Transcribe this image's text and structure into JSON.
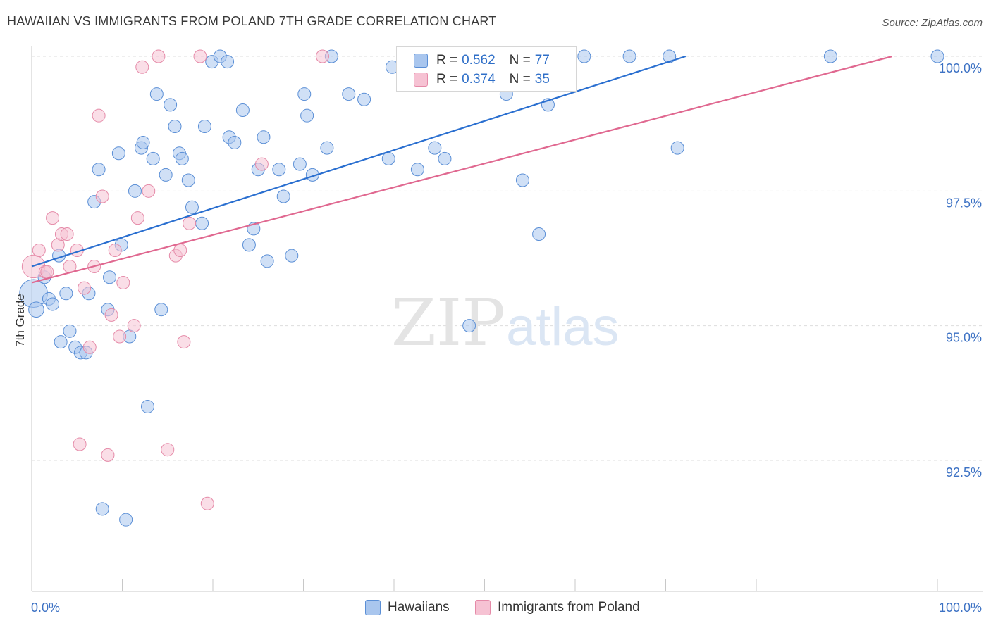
{
  "title": "HAWAIIAN VS IMMIGRANTS FROM POLAND 7TH GRADE CORRELATION CHART",
  "source": "Source: ZipAtlas.com",
  "watermark": {
    "zip": "ZIP",
    "atlas": "atlas"
  },
  "colors": {
    "blue_fill": "#a9c6ee",
    "blue_stroke": "#5b8fd6",
    "blue_line": "#2a6fd0",
    "pink_fill": "#f6c2d3",
    "pink_stroke": "#e58aa8",
    "pink_line": "#e06890",
    "axis_text": "#3d72c4",
    "grid": "#dddddd"
  },
  "legend_top": {
    "rows": [
      {
        "r_label": "R =",
        "r_value": "0.562",
        "n_label": "N =",
        "n_value": "77"
      },
      {
        "r_label": "R =",
        "r_value": "0.374",
        "n_label": "N =",
        "n_value": "35"
      }
    ]
  },
  "legend_bottom": [
    "Hawaiians",
    "Immigrants from Poland"
  ],
  "chart_data": {
    "type": "scatter",
    "title": "HAWAIIAN VS IMMIGRANTS FROM POLAND 7TH GRADE CORRELATION CHART",
    "ylabel": "7th Grade",
    "xlabel": "",
    "xlim": [
      0,
      100
    ],
    "ylim": [
      90.0,
      100.4
    ],
    "x_tick_labels": [
      "0.0%",
      "100.0%"
    ],
    "y_ticks": [
      92.5,
      95.0,
      97.5,
      100.0
    ],
    "y_tick_labels": [
      "92.5%",
      "95.0%",
      "97.5%",
      "100.0%"
    ],
    "grid": true,
    "legend_position": "top-center",
    "series": [
      {
        "name": "Hawaiians",
        "r": 0.562,
        "n": 77,
        "trend": {
          "x": [
            0.0,
            72.2
          ],
          "y": [
            96.1,
            100.0
          ]
        },
        "points": [
          [
            0.2,
            95.6,
            2.2
          ],
          [
            0.5,
            95.3,
            1.2
          ],
          [
            1.4,
            95.9,
            1
          ],
          [
            1.9,
            95.5,
            1
          ],
          [
            2.3,
            95.4,
            1
          ],
          [
            3.0,
            96.3,
            1
          ],
          [
            3.2,
            94.7,
            1
          ],
          [
            3.8,
            95.6,
            1
          ],
          [
            4.2,
            94.9,
            1
          ],
          [
            4.8,
            94.6,
            1
          ],
          [
            5.4,
            94.5,
            1
          ],
          [
            6.0,
            94.5,
            1
          ],
          [
            6.3,
            95.6,
            1
          ],
          [
            6.9,
            97.3,
            1
          ],
          [
            7.4,
            97.9,
            1
          ],
          [
            7.8,
            91.6,
            1
          ],
          [
            8.4,
            95.3,
            1
          ],
          [
            8.6,
            95.9,
            1
          ],
          [
            9.6,
            98.2,
            1
          ],
          [
            9.9,
            96.5,
            1
          ],
          [
            10.4,
            91.4,
            1
          ],
          [
            10.8,
            94.8,
            1
          ],
          [
            11.4,
            97.5,
            1
          ],
          [
            12.1,
            98.3,
            1
          ],
          [
            12.3,
            98.4,
            1
          ],
          [
            12.8,
            93.5,
            1
          ],
          [
            13.4,
            98.1,
            1
          ],
          [
            13.8,
            99.3,
            1
          ],
          [
            14.3,
            95.3,
            1
          ],
          [
            14.8,
            97.8,
            1
          ],
          [
            15.3,
            99.1,
            1
          ],
          [
            15.8,
            98.7,
            1
          ],
          [
            16.3,
            98.2,
            1
          ],
          [
            16.6,
            98.1,
            1
          ],
          [
            17.3,
            97.7,
            1
          ],
          [
            17.7,
            97.2,
            1
          ],
          [
            18.8,
            96.9,
            1
          ],
          [
            19.1,
            98.7,
            1
          ],
          [
            19.9,
            99.9,
            1
          ],
          [
            20.8,
            100.0,
            1
          ],
          [
            21.6,
            99.9,
            1
          ],
          [
            21.8,
            98.5,
            1
          ],
          [
            22.4,
            98.4,
            1
          ],
          [
            23.3,
            99.0,
            1
          ],
          [
            24.0,
            96.5,
            1
          ],
          [
            24.5,
            96.8,
            1
          ],
          [
            25.0,
            97.9,
            1
          ],
          [
            25.6,
            98.5,
            1
          ],
          [
            26.0,
            96.2,
            1
          ],
          [
            27.3,
            97.9,
            1
          ],
          [
            27.8,
            97.4,
            1
          ],
          [
            28.7,
            96.3,
            1
          ],
          [
            29.6,
            98.0,
            1
          ],
          [
            30.1,
            99.3,
            1
          ],
          [
            30.4,
            98.9,
            1
          ],
          [
            31.0,
            97.8,
            1
          ],
          [
            32.6,
            98.3,
            1
          ],
          [
            33.1,
            100.0,
            1
          ],
          [
            35.0,
            99.3,
            1
          ],
          [
            36.7,
            99.2,
            1
          ],
          [
            39.4,
            98.1,
            1
          ],
          [
            39.8,
            99.8,
            1
          ],
          [
            42.6,
            97.9,
            1
          ],
          [
            44.5,
            98.3,
            1
          ],
          [
            45.6,
            98.1,
            1
          ],
          [
            48.3,
            95.0,
            1
          ],
          [
            49.0,
            100.0,
            1
          ],
          [
            52.4,
            99.3,
            1
          ],
          [
            54.2,
            97.7,
            1
          ],
          [
            56.0,
            96.7,
            1
          ],
          [
            57.0,
            99.1,
            1
          ],
          [
            61.0,
            100.0,
            1
          ],
          [
            66.0,
            100.0,
            1
          ],
          [
            70.4,
            100.0,
            1
          ],
          [
            71.3,
            98.3,
            1
          ],
          [
            88.2,
            100.0,
            1
          ],
          [
            100.0,
            100.0,
            1
          ]
        ]
      },
      {
        "name": "Immigrants from Poland",
        "r": 0.374,
        "n": 35,
        "trend": {
          "x": [
            0.0,
            95.0
          ],
          "y": [
            95.8,
            100.0
          ]
        },
        "points": [
          [
            0.2,
            96.1,
            1.8
          ],
          [
            0.8,
            96.4,
            1
          ],
          [
            1.5,
            96.0,
            1
          ],
          [
            1.7,
            96.0,
            1
          ],
          [
            2.3,
            97.0,
            1
          ],
          [
            2.9,
            96.5,
            1
          ],
          [
            3.3,
            96.7,
            1
          ],
          [
            3.9,
            96.7,
            1
          ],
          [
            4.2,
            96.1,
            1
          ],
          [
            5.0,
            96.4,
            1
          ],
          [
            5.3,
            92.8,
            1
          ],
          [
            5.8,
            95.7,
            1
          ],
          [
            6.4,
            94.6,
            1
          ],
          [
            6.9,
            96.1,
            1
          ],
          [
            7.4,
            98.9,
            1
          ],
          [
            7.8,
            97.4,
            1
          ],
          [
            8.4,
            92.6,
            1
          ],
          [
            8.8,
            95.2,
            1
          ],
          [
            9.2,
            96.4,
            1
          ],
          [
            9.7,
            94.8,
            1
          ],
          [
            10.1,
            95.8,
            1
          ],
          [
            11.3,
            95.0,
            1
          ],
          [
            11.7,
            97.0,
            1
          ],
          [
            12.2,
            99.8,
            1
          ],
          [
            12.9,
            97.5,
            1
          ],
          [
            14.0,
            100.0,
            1
          ],
          [
            15.0,
            92.7,
            1
          ],
          [
            15.9,
            96.3,
            1
          ],
          [
            16.4,
            96.4,
            1
          ],
          [
            16.8,
            94.7,
            1
          ],
          [
            17.4,
            96.9,
            1
          ],
          [
            18.6,
            100.0,
            1
          ],
          [
            19.4,
            91.7,
            1
          ],
          [
            25.4,
            98.0,
            1
          ],
          [
            32.1,
            100.0,
            1
          ]
        ]
      }
    ]
  }
}
